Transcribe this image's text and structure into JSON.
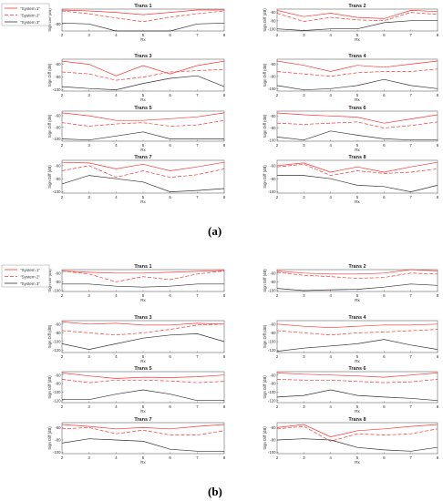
{
  "colors": {
    "system1": "#ff3333",
    "system2": "#ff3333",
    "system3": "#333333",
    "axis": "#666666"
  },
  "panels": [
    {
      "caption": "(a)",
      "legend": [
        "\"System 1\"",
        "\"System 2\"",
        "\"System 3\""
      ]
    },
    {
      "caption": "(b)",
      "legend": [
        "\"System 1\"",
        "\"System 2\"",
        "\"System 3\""
      ]
    }
  ],
  "chart_data": [
    {
      "panel": "a",
      "type": "line",
      "title": "Trans 1",
      "xlabel": "Rx",
      "ylabel": "Sign Diff (dB)",
      "x": [
        2,
        3,
        4,
        5,
        6,
        7,
        8
      ],
      "yticks": [
        -80
      ],
      "ylim": [
        -95,
        -48
      ],
      "series": [
        {
          "name": "\"System 1\"",
          "values": [
            -50,
            -52,
            -55,
            -60,
            -55,
            -50,
            -50
          ]
        },
        {
          "name": "\"System 2\"",
          "values": [
            -52,
            -58,
            -67,
            -75,
            -65,
            -58,
            -52
          ]
        },
        {
          "name": "\"System 3\"",
          "values": [
            -78,
            -80,
            -95,
            -95,
            -95,
            -80,
            -78
          ]
        }
      ]
    },
    {
      "panel": "a",
      "type": "line",
      "title": "Trans 2",
      "xlabel": "Rx",
      "ylabel": "Sign Diff (dB)",
      "x": [
        2,
        3,
        4,
        5,
        6,
        7,
        8
      ],
      "yticks": [
        -60,
        -80,
        -100
      ],
      "ylim": [
        -105,
        -52
      ],
      "series": [
        {
          "name": "\"System 1\"",
          "values": [
            -55,
            -70,
            -62,
            -72,
            -75,
            -55,
            -58
          ]
        },
        {
          "name": "\"System 2\"",
          "values": [
            -62,
            -82,
            -72,
            -78,
            -80,
            -60,
            -65
          ]
        },
        {
          "name": "\"System 3\"",
          "values": [
            -100,
            -104,
            -100,
            -100,
            -85,
            -80,
            -80
          ]
        }
      ]
    },
    {
      "panel": "a",
      "type": "line",
      "title": "Trans 3",
      "xlabel": "Rx",
      "ylabel": "Sign Diff (dB)",
      "x": [
        2,
        3,
        4,
        5,
        6,
        7,
        8
      ],
      "yticks": [
        -60,
        -80,
        -100
      ],
      "ylim": [
        -102,
        -52
      ],
      "series": [
        {
          "name": "\"System 1\"",
          "values": [
            -55,
            -60,
            -78,
            -62,
            -75,
            -62,
            -55
          ]
        },
        {
          "name": "\"System 2\"",
          "values": [
            -72,
            -75,
            -85,
            -80,
            -72,
            -70,
            -68
          ]
        },
        {
          "name": "\"System 3\"",
          "values": [
            -95,
            -98,
            -100,
            -90,
            -82,
            -78,
            -95
          ]
        }
      ]
    },
    {
      "panel": "a",
      "type": "line",
      "title": "Trans 4",
      "xlabel": "Rx",
      "ylabel": "Sign Diff (dB)",
      "x": [
        2,
        3,
        4,
        5,
        6,
        7,
        8
      ],
      "yticks": [
        -60,
        -80,
        -100
      ],
      "ylim": [
        -104,
        -52
      ],
      "series": [
        {
          "name": "\"System 1\"",
          "values": [
            -55,
            -62,
            -72,
            -62,
            -65,
            -60,
            -55
          ]
        },
        {
          "name": "\"System 2\"",
          "values": [
            -72,
            -76,
            -80,
            -74,
            -72,
            -72,
            -68
          ]
        },
        {
          "name": "\"System 3\"",
          "values": [
            -95,
            -102,
            -100,
            -95,
            -85,
            -95,
            -100
          ]
        }
      ]
    },
    {
      "panel": "a",
      "type": "line",
      "title": "Trans 5",
      "xlabel": "Rx",
      "ylabel": "Sign Diff (dB)",
      "x": [
        2,
        3,
        4,
        5,
        6,
        7,
        8
      ],
      "yticks": [
        -60,
        -80,
        -100
      ],
      "ylim": [
        -104,
        -52
      ],
      "series": [
        {
          "name": "\"System 1\"",
          "values": [
            -55,
            -60,
            -68,
            -68,
            -65,
            -62,
            -55
          ]
        },
        {
          "name": "\"System 2\"",
          "values": [
            -72,
            -78,
            -74,
            -72,
            -78,
            -76,
            -68
          ]
        },
        {
          "name": "\"System 3\"",
          "values": [
            -100,
            -102,
            -95,
            -88,
            -100,
            -100,
            -100
          ]
        }
      ]
    },
    {
      "panel": "a",
      "type": "line",
      "title": "Trans 6",
      "xlabel": "Rx",
      "ylabel": "Sign Diff (dB)",
      "x": [
        2,
        3,
        4,
        5,
        6,
        7,
        8
      ],
      "yticks": [
        -60,
        -80,
        -100
      ],
      "ylim": [
        -102,
        -52
      ],
      "series": [
        {
          "name": "\"System 1\"",
          "values": [
            -55,
            -58,
            -60,
            -62,
            -72,
            -65,
            -58
          ]
        },
        {
          "name": "\"System 2\"",
          "values": [
            -72,
            -74,
            -72,
            -70,
            -80,
            -76,
            -70
          ]
        },
        {
          "name": "\"System 3\"",
          "values": [
            -95,
            -100,
            -85,
            -92,
            -98,
            -100,
            -100
          ]
        }
      ]
    },
    {
      "panel": "a",
      "type": "line",
      "title": "Trans 7",
      "xlabel": "Rx",
      "ylabel": "Sign Diff (dB)",
      "x": [
        2,
        3,
        4,
        5,
        6,
        7,
        8
      ],
      "yticks": [
        -60,
        -80,
        -100
      ],
      "ylim": [
        -102,
        -52
      ],
      "series": [
        {
          "name": "\"System 1\"",
          "values": [
            -55,
            -56,
            -65,
            -58,
            -68,
            -62,
            -55
          ]
        },
        {
          "name": "\"System 2\"",
          "values": [
            -68,
            -60,
            -78,
            -68,
            -78,
            -74,
            -65
          ]
        },
        {
          "name": "\"System 3\"",
          "values": [
            -88,
            -75,
            -80,
            -85,
            -100,
            -98,
            -95
          ]
        }
      ]
    },
    {
      "panel": "a",
      "type": "line",
      "title": "Trans 8",
      "xlabel": "Rx",
      "ylabel": "Sign Diff (dB)",
      "x": [
        2,
        3,
        4,
        5,
        6,
        7,
        8
      ],
      "yticks": [
        -60,
        -80,
        -100
      ],
      "ylim": [
        -102,
        -52
      ],
      "series": [
        {
          "name": "\"System 1\"",
          "values": [
            -60,
            -56,
            -70,
            -62,
            -70,
            -62,
            -55
          ]
        },
        {
          "name": "\"System 2\"",
          "values": [
            -62,
            -58,
            -75,
            -68,
            -72,
            -70,
            -65
          ]
        },
        {
          "name": "\"System 3\"",
          "values": [
            -75,
            -75,
            -80,
            -90,
            -92,
            -100,
            -90
          ]
        }
      ]
    },
    {
      "panel": "b",
      "type": "line",
      "title": "Trans 1",
      "xlabel": "Rx",
      "ylabel": "Sign Diff (dB)",
      "x": [
        2,
        3,
        4,
        5,
        6,
        7,
        8
      ],
      "yticks": [
        -60,
        -80,
        -100
      ],
      "ylim": [
        -102,
        -52
      ],
      "series": [
        {
          "name": "\"System 1\"",
          "values": [
            -55,
            -58,
            -60,
            -60,
            -58,
            -56,
            -54
          ]
        },
        {
          "name": "\"System 2\"",
          "values": [
            -55,
            -62,
            -80,
            -68,
            -75,
            -62,
            -55
          ]
        },
        {
          "name": "\"System 3\"",
          "values": [
            -85,
            -85,
            -90,
            -92,
            -90,
            -85,
            -85
          ]
        }
      ]
    },
    {
      "panel": "b",
      "type": "line",
      "title": "Trans 2",
      "xlabel": "Rx",
      "ylabel": "Sign Diff (dB)",
      "x": [
        2,
        3,
        4,
        5,
        6,
        7,
        8
      ],
      "yticks": [
        -60,
        -80,
        -100
      ],
      "ylim": [
        -102,
        -52
      ],
      "series": [
        {
          "name": "\"System 1\"",
          "values": [
            -55,
            -60,
            -62,
            -62,
            -60,
            -52,
            -55
          ]
        },
        {
          "name": "\"System 2\"",
          "values": [
            -58,
            -65,
            -68,
            -72,
            -70,
            -60,
            -62
          ]
        },
        {
          "name": "\"System 3\"",
          "values": [
            -95,
            -100,
            -98,
            -97,
            -92,
            -85,
            -88
          ]
        }
      ]
    },
    {
      "panel": "b",
      "type": "line",
      "title": "Trans 3",
      "xlabel": "Rx",
      "ylabel": "Sign Diff (dB)",
      "x": [
        2,
        3,
        4,
        5,
        6,
        7,
        8
      ],
      "yticks": [
        -60,
        -80,
        -100,
        -120
      ],
      "ylim": [
        -125,
        -52
      ],
      "series": [
        {
          "name": "\"System 1\"",
          "values": [
            -55,
            -60,
            -58,
            -62,
            -62,
            -58,
            -60
          ]
        },
        {
          "name": "\"System 2\"",
          "values": [
            -75,
            -80,
            -85,
            -80,
            -72,
            -62,
            -60
          ]
        },
        {
          "name": "\"System 3\"",
          "values": [
            -105,
            -118,
            -105,
            -92,
            -85,
            -82,
            -100
          ]
        }
      ]
    },
    {
      "panel": "b",
      "type": "line",
      "title": "Trans 4",
      "xlabel": "Rx",
      "ylabel": "Sign Diff (dB)",
      "x": [
        2,
        3,
        4,
        5,
        6,
        7,
        8
      ],
      "yticks": [
        -60,
        -80,
        -100,
        -120
      ],
      "ylim": [
        -125,
        -52
      ],
      "series": [
        {
          "name": "\"System 1\"",
          "values": [
            -60,
            -65,
            -68,
            -65,
            -62,
            -62,
            -60
          ]
        },
        {
          "name": "\"System 2\"",
          "values": [
            -75,
            -80,
            -85,
            -80,
            -78,
            -75,
            -72
          ]
        },
        {
          "name": "\"System 3\"",
          "values": [
            -122,
            -115,
            -110,
            -105,
            -95,
            -108,
            -118
          ]
        }
      ]
    },
    {
      "panel": "b",
      "type": "line",
      "title": "Trans 5",
      "xlabel": "Rx",
      "ylabel": "Sign Diff (dB)",
      "x": [
        2,
        3,
        4,
        5,
        6,
        7,
        8
      ],
      "yticks": [
        -60,
        -80,
        -100,
        -120
      ],
      "ylim": [
        -125,
        -52
      ],
      "series": [
        {
          "name": "\"System 1\"",
          "values": [
            -55,
            -62,
            -68,
            -65,
            -66,
            -64,
            -60
          ]
        },
        {
          "name": "\"System 2\"",
          "values": [
            -70,
            -78,
            -72,
            -72,
            -74,
            -78,
            -75
          ]
        },
        {
          "name": "\"System 3\"",
          "values": [
            -118,
            -118,
            -105,
            -95,
            -105,
            -120,
            -120
          ]
        }
      ]
    },
    {
      "panel": "b",
      "type": "line",
      "title": "Trans 6",
      "xlabel": "Rx",
      "ylabel": "Sign Diff (dB)",
      "x": [
        2,
        3,
        4,
        5,
        6,
        7,
        8
      ],
      "yticks": [
        -60,
        -80,
        -100,
        -120
      ],
      "ylim": [
        -125,
        -52
      ],
      "series": [
        {
          "name": "\"System 1\"",
          "values": [
            -55,
            -58,
            -60,
            -62,
            -65,
            -60,
            -55
          ]
        },
        {
          "name": "\"System 2\"",
          "values": [
            -70,
            -72,
            -72,
            -75,
            -78,
            -76,
            -70
          ]
        },
        {
          "name": "\"System 3\"",
          "values": [
            -112,
            -108,
            -95,
            -108,
            -112,
            -115,
            -120
          ]
        }
      ]
    },
    {
      "panel": "b",
      "type": "line",
      "title": "Trans 7",
      "xlabel": "Rx",
      "ylabel": "Sign Diff (dB)",
      "x": [
        2,
        3,
        4,
        5,
        6,
        7,
        8
      ],
      "yticks": [
        -60,
        -80,
        -100
      ],
      "ylim": [
        -102,
        -52
      ],
      "series": [
        {
          "name": "\"System 1\"",
          "values": [
            -55,
            -58,
            -62,
            -60,
            -62,
            -58,
            -55
          ]
        },
        {
          "name": "\"System 2\"",
          "values": [
            -62,
            -60,
            -70,
            -64,
            -72,
            -72,
            -65
          ]
        },
        {
          "name": "\"System 3\"",
          "values": [
            -85,
            -78,
            -80,
            -82,
            -95,
            -98,
            -98
          ]
        }
      ]
    },
    {
      "panel": "b",
      "type": "line",
      "title": "Trans 8",
      "xlabel": "Rx",
      "ylabel": "Sign Diff (dB)",
      "x": [
        2,
        3,
        4,
        5,
        6,
        7,
        8
      ],
      "yticks": [
        -60,
        -80,
        -100
      ],
      "ylim": [
        -102,
        -52
      ],
      "series": [
        {
          "name": "\"System 1\"",
          "values": [
            -60,
            -55,
            -75,
            -65,
            -62,
            -58,
            -55
          ]
        },
        {
          "name": "\"System 2\"",
          "values": [
            -62,
            -58,
            -82,
            -70,
            -72,
            -70,
            -62
          ]
        },
        {
          "name": "\"System 3\"",
          "values": [
            -80,
            -78,
            -80,
            -92,
            -96,
            -98,
            -92
          ]
        }
      ]
    }
  ]
}
